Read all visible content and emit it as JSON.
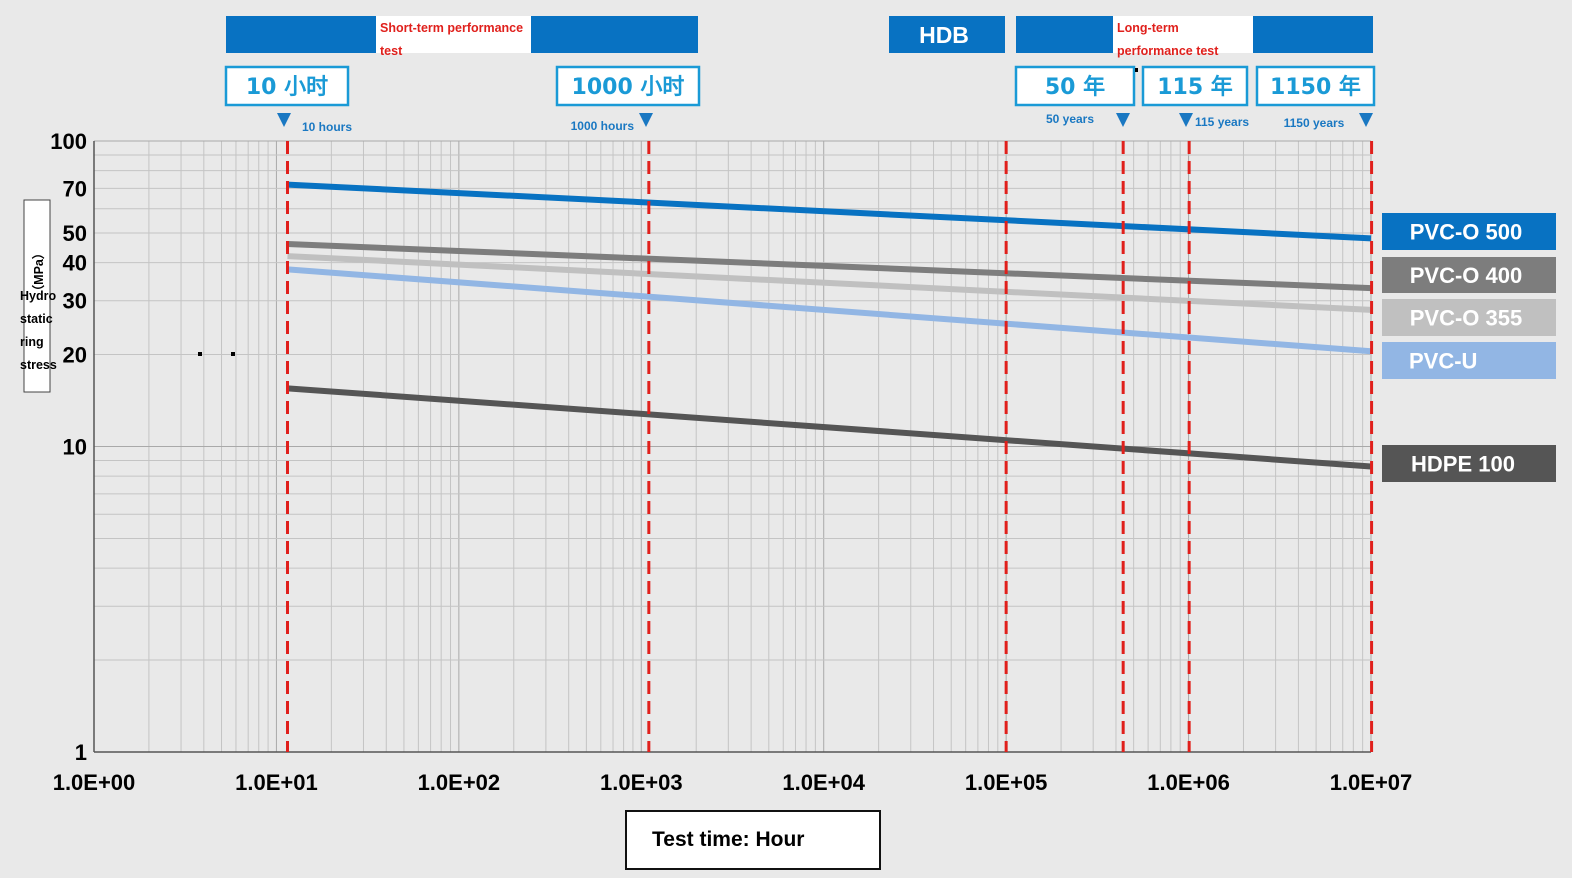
{
  "chart_data": {
    "type": "line",
    "x_scale": "log",
    "y_scale": "log",
    "xlim": [
      1,
      10000000
    ],
    "ylim": [
      1,
      100
    ],
    "x_ticks": [
      1,
      10,
      100,
      1000,
      10000,
      100000,
      1000000,
      10000000
    ],
    "x_tick_labels": [
      "1.0E+00",
      "1.0E+01",
      "1.0E+02",
      "1.0E+03",
      "1.0E+04",
      "1.0E+05",
      "1.0E+06",
      "1.0E+07"
    ],
    "y_ticks": [
      1,
      10,
      20,
      30,
      40,
      50,
      70,
      100
    ],
    "y_tick_labels": [
      "1",
      "10",
      "20",
      "30",
      "40",
      "50",
      "70",
      "100"
    ],
    "xlabel": "Test time: Hour",
    "ylabel_unit": "（MPa）",
    "ylabel_lines": [
      "Hydro",
      "static",
      "ring",
      "stress"
    ],
    "grid": true,
    "series": [
      {
        "name": "PVC-O 500",
        "color": "#0872c2",
        "x": [
          11.5,
          10000000
        ],
        "y": [
          72,
          48
        ]
      },
      {
        "name": "PVC-O 400",
        "color": "#7d7d7d",
        "x": [
          11.5,
          10000000
        ],
        "y": [
          46,
          33
        ]
      },
      {
        "name": "PVC-O 355",
        "color": "#c0c0c0",
        "x": [
          11.5,
          10000000
        ],
        "y": [
          42,
          28
        ]
      },
      {
        "name": "PVC-U",
        "color": "#92b6e4",
        "x": [
          11.5,
          10000000
        ],
        "y": [
          38,
          20.5
        ]
      },
      {
        "name": "HDPE 100",
        "color": "#555555",
        "x": [
          11.5,
          10000000
        ],
        "y": [
          15.5,
          8.6
        ]
      }
    ],
    "markers": [
      {
        "x": 11.5,
        "top_label": "10 小时",
        "sub_label": "10 hours"
      },
      {
        "x": 1100,
        "top_label": "1000 小时",
        "sub_label": "1000 hours"
      },
      {
        "x": 100000,
        "top_label": "",
        "sub_label": ""
      },
      {
        "x": 438000,
        "top_label": "50 年",
        "sub_label": "50 years"
      },
      {
        "x": 1007400,
        "top_label": "115 年",
        "sub_label": "115 years"
      },
      {
        "x": 10074000,
        "top_label": "1150 年",
        "sub_label": "1150 years"
      }
    ],
    "headers": {
      "short_term": "Short-term performance test",
      "hdb": "HDB",
      "long_term": "Long-term performance test"
    }
  },
  "colors": {
    "header_blue": "#0872c2",
    "marker_red": "#e0201c",
    "label_blue": "#1a9ad6"
  }
}
